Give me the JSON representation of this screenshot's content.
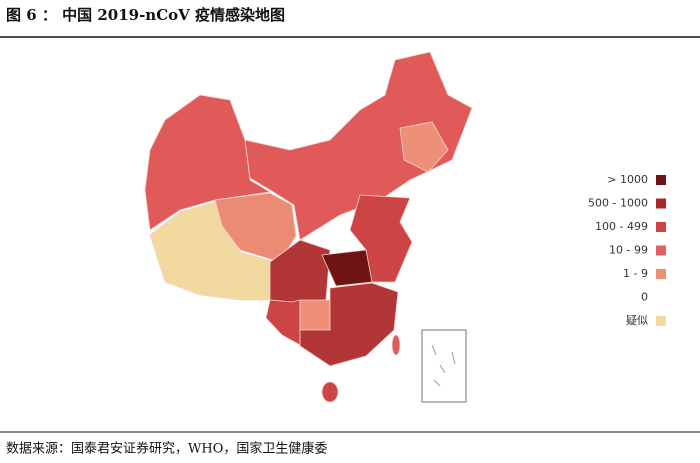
{
  "header": {
    "title": "图 6 ： 中国 2019-nCoV 疫情感染地图"
  },
  "legend": {
    "items": [
      {
        "label": "> 1000",
        "color": "#6e1414"
      },
      {
        "label": "500 - 1000",
        "color": "#a52a2a"
      },
      {
        "label": "100 - 499",
        "color": "#cc4444"
      },
      {
        "label": "10 - 99",
        "color": "#e06060"
      },
      {
        "label": "1 - 9",
        "color": "#ee9078"
      },
      {
        "label": "0",
        "color": "#ffffff"
      },
      {
        "label": "疑似",
        "color": "#f1d9a0"
      }
    ]
  },
  "footer": {
    "source": "数据来源：国泰君安证券研究，WHO，国家卫生健康委"
  }
}
